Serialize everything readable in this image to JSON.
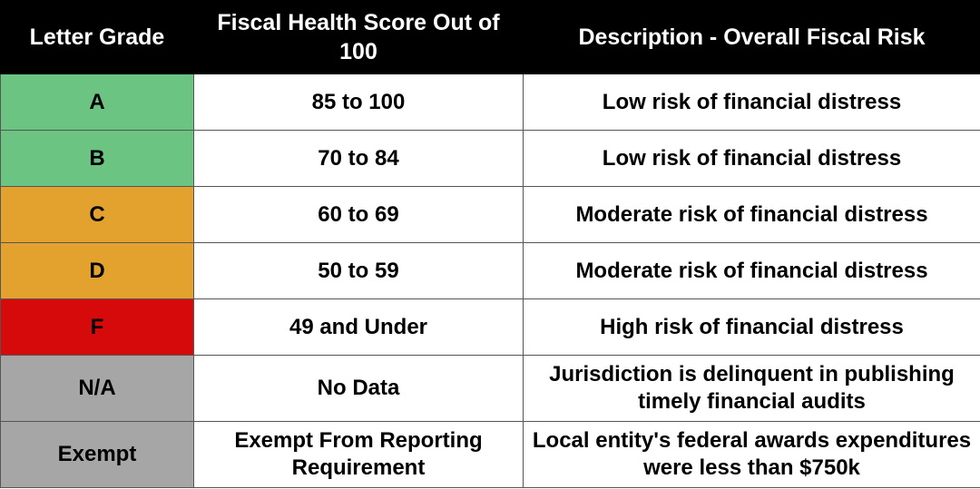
{
  "header": {
    "col1": "Letter Grade",
    "col2": "Fiscal Health Score Out of 100",
    "col3": "Description - Overall Fiscal Risk"
  },
  "rows": [
    {
      "grade": "A",
      "score": "85 to 100",
      "description": "Low risk of financial distress",
      "color": "#6cc483"
    },
    {
      "grade": "B",
      "score": "70 to 84",
      "description": "Low risk of financial distress",
      "color": "#6cc483"
    },
    {
      "grade": "C",
      "score": "60 to 69",
      "description": "Moderate risk of financial distress",
      "color": "#e3a22d"
    },
    {
      "grade": "D",
      "score": "50 to 59",
      "description": "Moderate risk of financial distress",
      "color": "#e3a22d"
    },
    {
      "grade": "F",
      "score": "49 and Under",
      "description": "High risk of financial distress",
      "color": "#d60a0a"
    },
    {
      "grade": "N/A",
      "score": "No Data",
      "description": "Jurisdiction is delinquent in publishing timely financial audits",
      "color": "#a6a6a6"
    },
    {
      "grade": "Exempt",
      "score": "Exempt From Reporting Requirement",
      "description": "Local entity's federal awards expenditures were less than $750k",
      "color": "#a6a6a6"
    }
  ]
}
